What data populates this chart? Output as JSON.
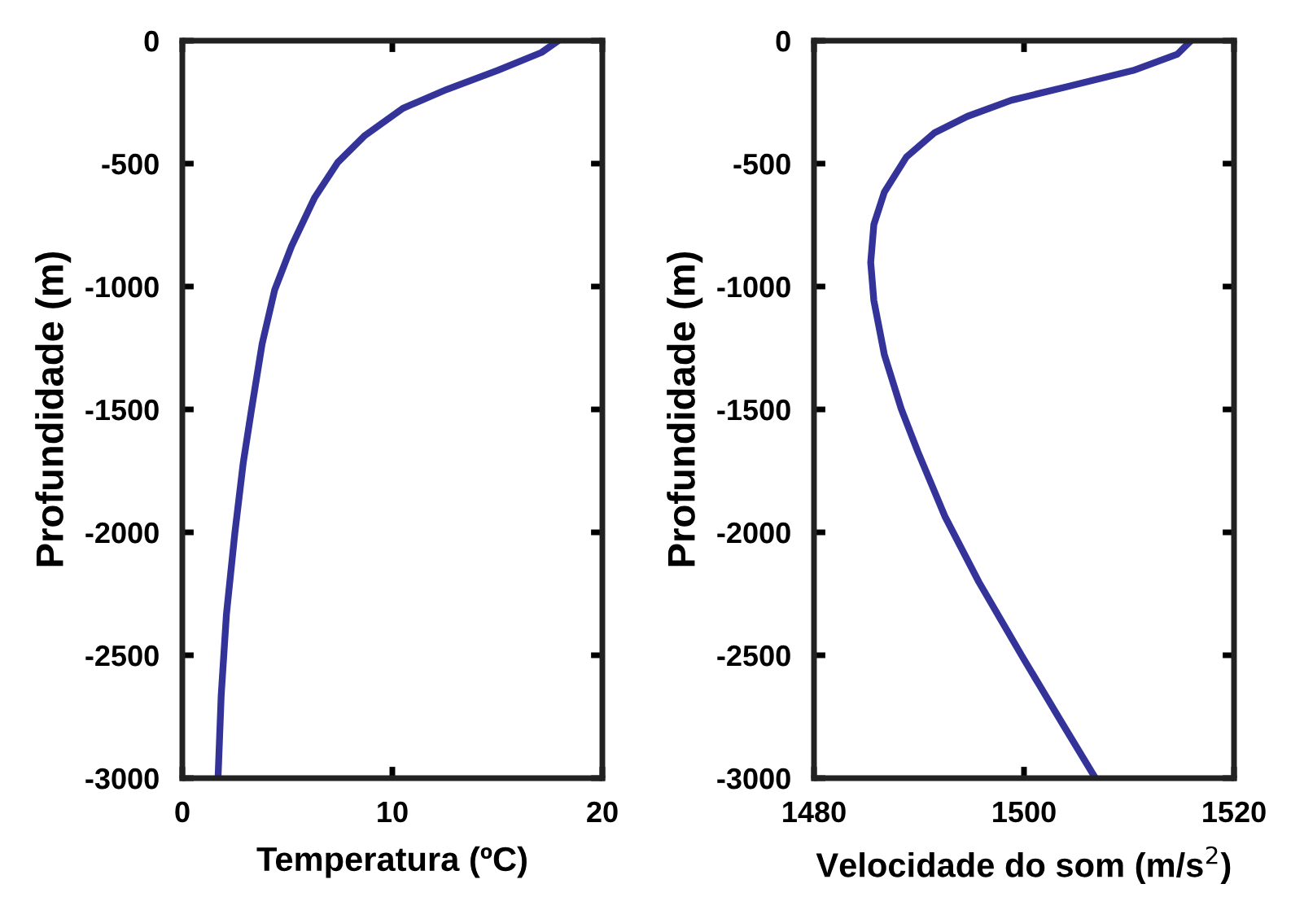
{
  "chart_data": [
    {
      "type": "line",
      "xlabel": "Temperatura (ºC)",
      "ylabel": "Profundidade (m)",
      "xlim": [
        0,
        20
      ],
      "xticks": [
        0,
        10,
        20
      ],
      "ylim": [
        -3000,
        0
      ],
      "yticks": [
        -3000,
        -2500,
        -2000,
        -1500,
        -1000,
        -500,
        0
      ],
      "grid": false,
      "marker": "none",
      "line_style": "solid",
      "series": [
        {
          "color": "#33339a",
          "x": [
            17.9,
            17.1,
            15.0,
            12.6,
            10.5,
            8.7,
            7.4,
            6.3,
            5.2,
            4.4,
            3.8,
            3.3,
            2.9,
            2.5,
            2.1,
            1.85,
            1.7
          ],
          "values": [
            0,
            -48,
            -121,
            -198,
            -275,
            -385,
            -495,
            -638,
            -836,
            -1013,
            -1233,
            -1497,
            -1717,
            -2003,
            -2333,
            -2664,
            -3000
          ]
        }
      ]
    },
    {
      "type": "line",
      "xlabel": "Velocidade do som (m/s$^{2}$)",
      "ylabel": "Profundidade (m)",
      "xlim": [
        1480,
        1520
      ],
      "xticks": [
        1480,
        1500,
        1520
      ],
      "ylim": [
        -3000,
        0
      ],
      "yticks": [
        -3000,
        -2500,
        -2000,
        -1500,
        -1000,
        -500,
        0
      ],
      "grid": false,
      "marker": "none",
      "line_style": "solid",
      "series": [
        {
          "color": "#33339a",
          "x": [
            1515.9,
            1514.6,
            1510.4,
            1504.1,
            1498.8,
            1494.6,
            1491.5,
            1488.8,
            1486.7,
            1485.7,
            1485.4,
            1485.7,
            1486.7,
            1488.3,
            1489.9,
            1492.5,
            1495.7,
            1499.9,
            1503.6,
            1506.8
          ],
          "values": [
            0,
            -55,
            -121,
            -187,
            -242,
            -308,
            -374,
            -473,
            -616,
            -748,
            -902,
            -1057,
            -1277,
            -1497,
            -1673,
            -1938,
            -2202,
            -2510,
            -2774,
            -3000
          ]
        }
      ]
    }
  ]
}
